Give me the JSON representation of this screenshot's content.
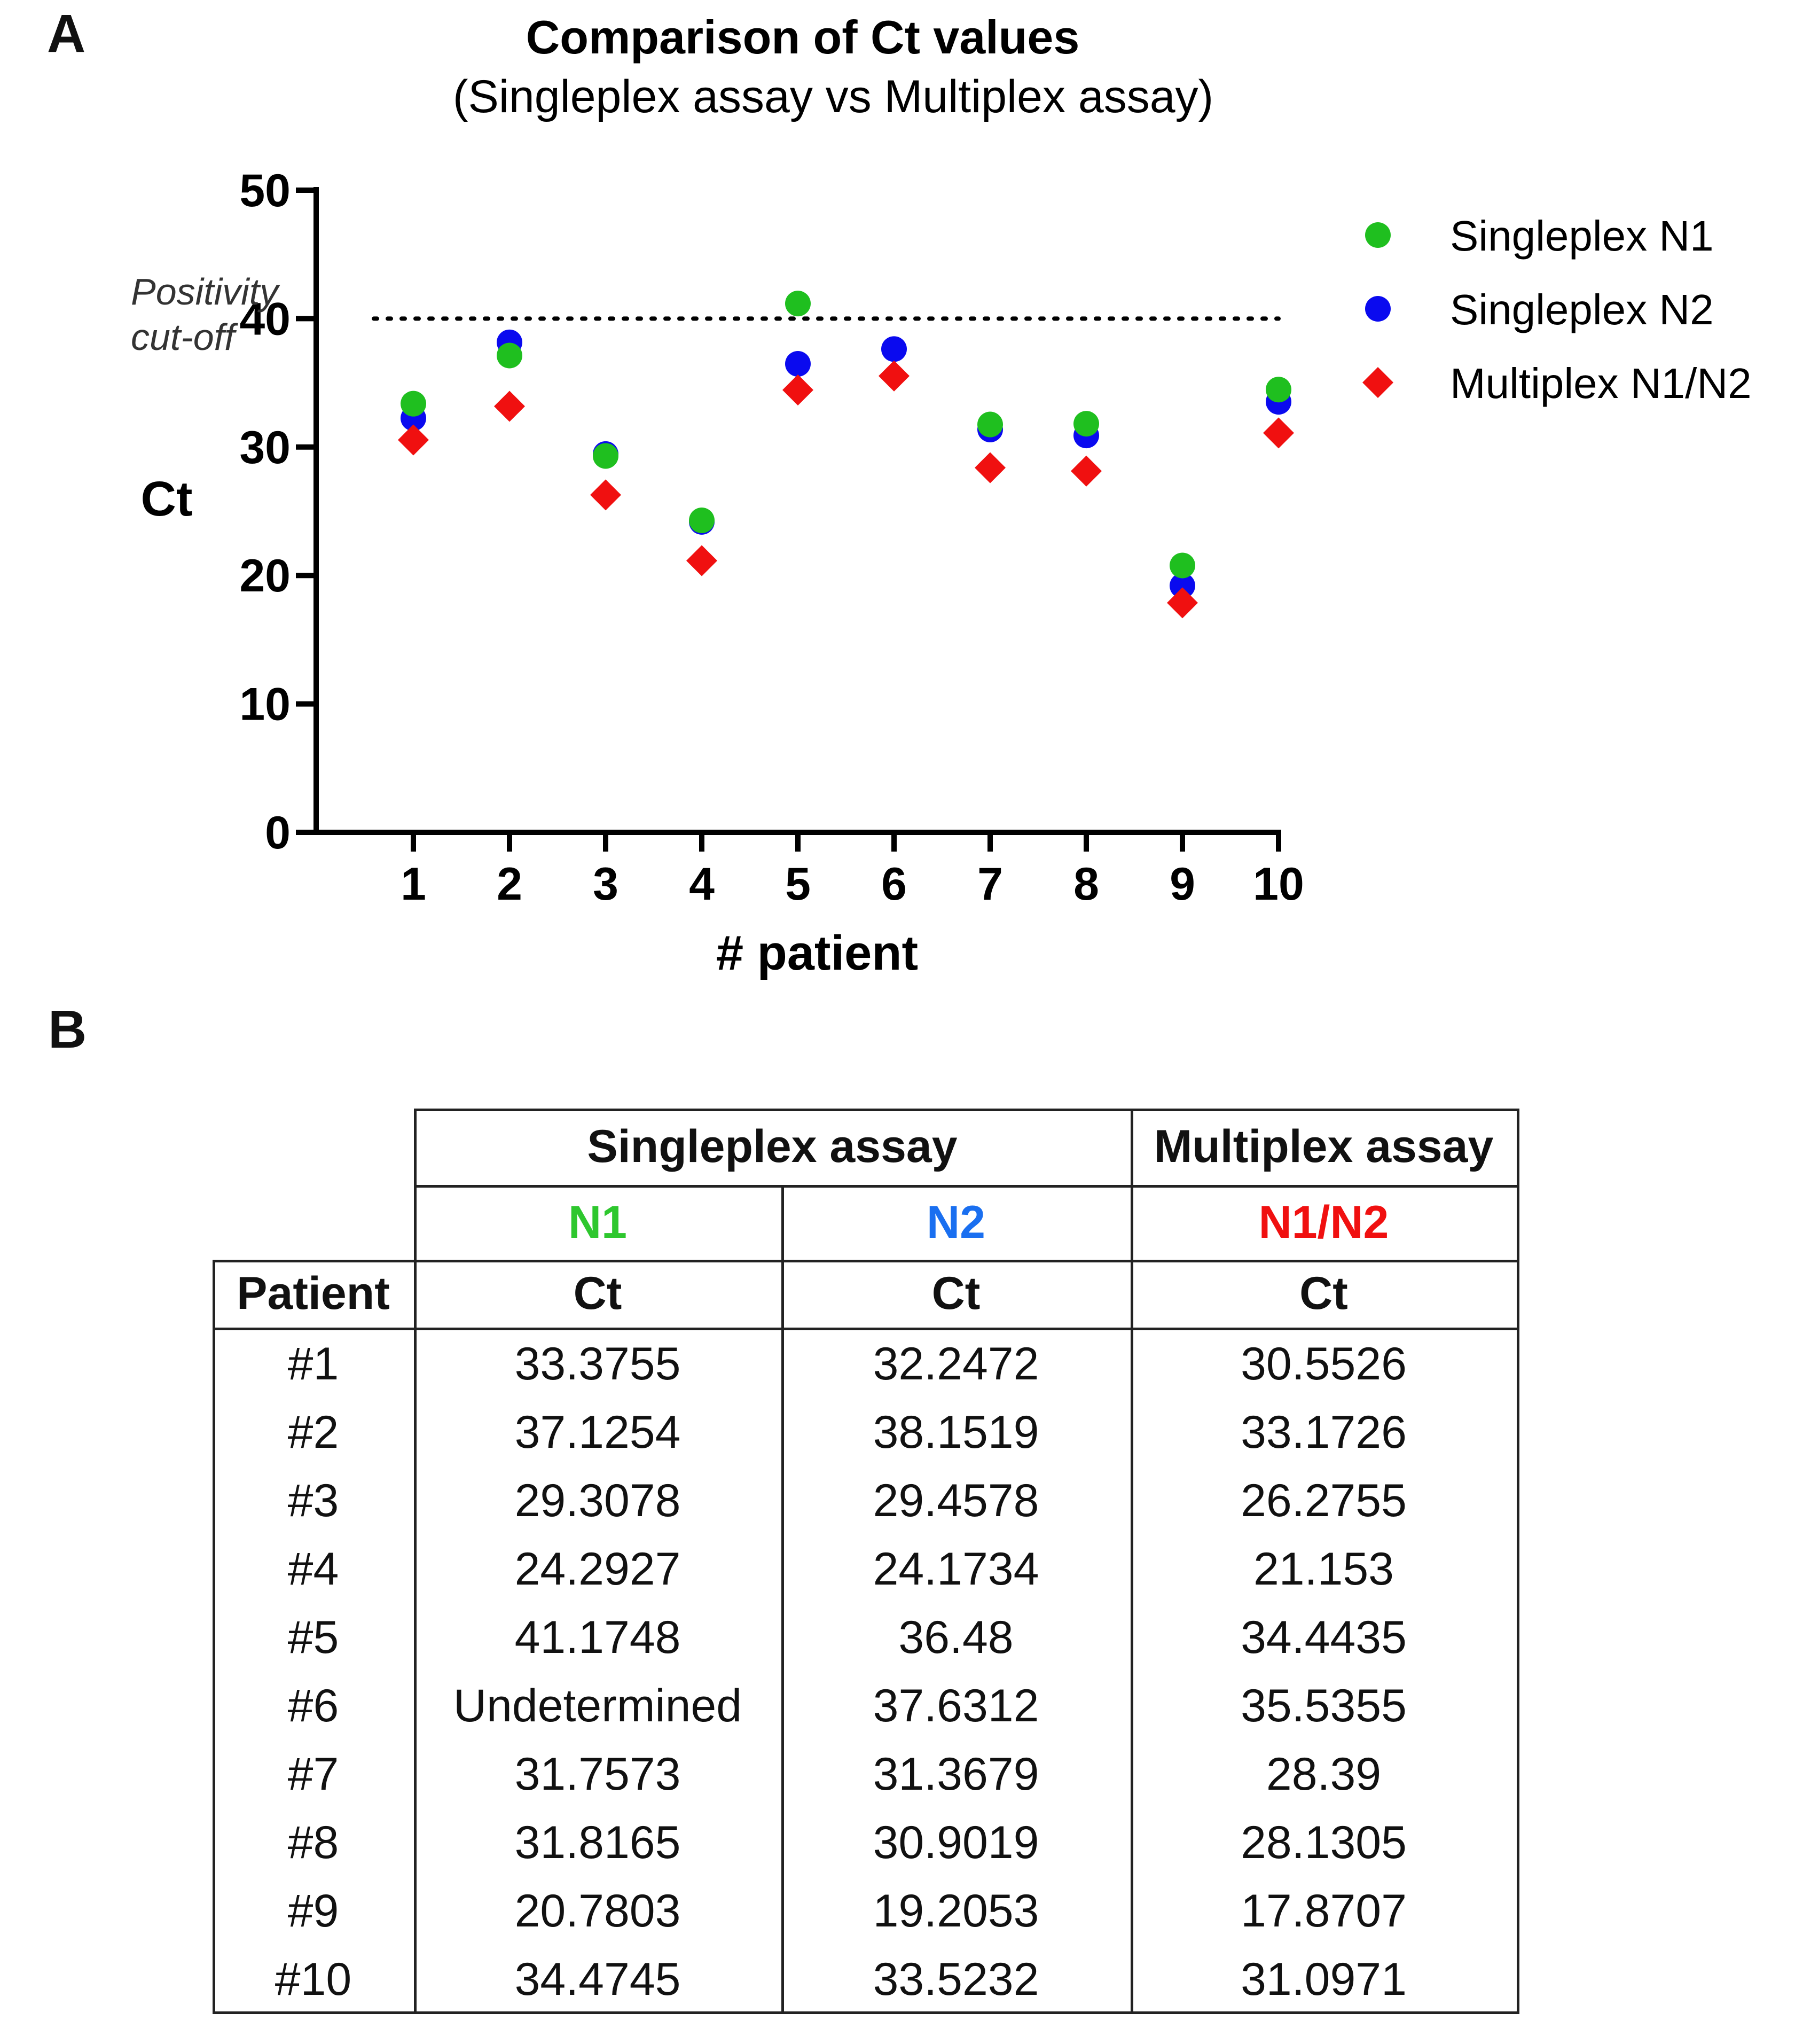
{
  "panels": {
    "a_label": "A",
    "b_label": "B"
  },
  "chart_data": {
    "type": "scatter",
    "title": "Comparison of Ct values",
    "subtitle": "(Singleplex assay vs Multiplex assay)",
    "xlabel": "# patient",
    "ylabel": "Ct",
    "x": [
      1,
      2,
      3,
      4,
      5,
      6,
      7,
      8,
      9,
      10
    ],
    "x_ticks": [
      "1",
      "2",
      "3",
      "4",
      "5",
      "6",
      "7",
      "8",
      "9",
      "10"
    ],
    "y_ticks": [
      "0",
      "10",
      "20",
      "30",
      "40",
      "50"
    ],
    "ylim": [
      0,
      50
    ],
    "xlim": [
      0,
      10
    ],
    "grid": false,
    "legend_position": "right",
    "cutoff": {
      "value": 40,
      "label_line1": "Positivity",
      "label_line2": "cut-off"
    },
    "series": [
      {
        "name": "Singleplex N1",
        "marker": "circle",
        "color": "#1fbf1f",
        "values": [
          33.3755,
          37.1254,
          29.3078,
          24.2927,
          41.1748,
          null,
          31.7573,
          31.8165,
          20.7803,
          34.4745
        ]
      },
      {
        "name": "Singleplex N2",
        "marker": "circle",
        "color": "#0a0aef",
        "values": [
          32.2472,
          38.1519,
          29.4578,
          24.1734,
          36.48,
          37.6312,
          31.3679,
          30.9019,
          19.2053,
          33.5232
        ]
      },
      {
        "name": "Multiplex N1/N2",
        "marker": "diamond",
        "color": "#f01010",
        "values": [
          30.5526,
          33.1726,
          26.2755,
          21.153,
          34.4435,
          35.5355,
          28.39,
          28.1305,
          17.8707,
          31.0971
        ]
      }
    ]
  },
  "table": {
    "group_singleplex": "Singleplex assay",
    "group_multiplex": "Multiplex assay",
    "sub_n1": "N1",
    "sub_n2": "N2",
    "sub_n1n2": "N1/N2",
    "col_patient": "Patient",
    "col_ct": "Ct",
    "colors": {
      "n1": "#2ec72e",
      "n2": "#1a6ff0",
      "n1n2": "#f01010"
    },
    "rows": [
      [
        "#1",
        "33.3755",
        "32.2472",
        "30.5526"
      ],
      [
        "#2",
        "37.1254",
        "38.1519",
        "33.1726"
      ],
      [
        "#3",
        "29.3078",
        "29.4578",
        "26.2755"
      ],
      [
        "#4",
        "24.2927",
        "24.1734",
        "21.153"
      ],
      [
        "#5",
        "41.1748",
        "36.48",
        "34.4435"
      ],
      [
        "#6",
        "Undetermined",
        "37.6312",
        "35.5355"
      ],
      [
        "#7",
        "31.7573",
        "31.3679",
        "28.39"
      ],
      [
        "#8",
        "31.8165",
        "30.9019",
        "28.1305"
      ],
      [
        "#9",
        "20.7803",
        "19.2053",
        "17.8707"
      ],
      [
        "#10",
        "34.4745",
        "33.5232",
        "31.0971"
      ]
    ]
  }
}
